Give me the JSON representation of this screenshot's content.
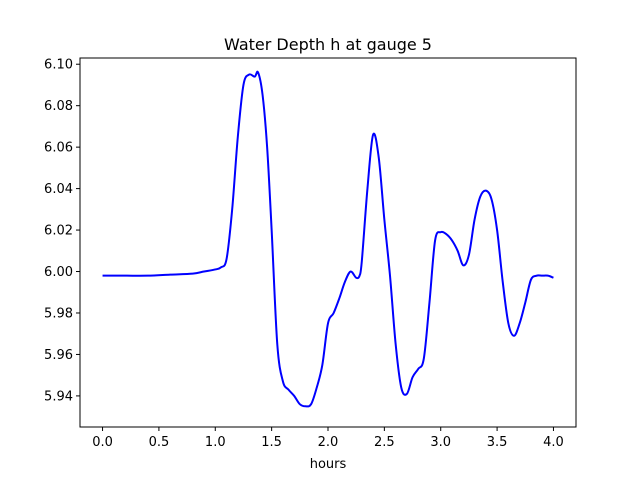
{
  "chart_data": {
    "type": "line",
    "title": "Water Depth h at gauge 5",
    "xlabel": "hours",
    "ylabel": "",
    "xlim": [
      -0.2,
      4.2
    ],
    "ylim": [
      5.925,
      6.103
    ],
    "xticks": [
      0.0,
      0.5,
      1.0,
      1.5,
      2.0,
      2.5,
      3.0,
      3.5,
      4.0
    ],
    "xtick_labels": [
      "0.0",
      "0.5",
      "1.0",
      "1.5",
      "2.0",
      "2.5",
      "3.0",
      "3.5",
      "4.0"
    ],
    "yticks": [
      5.94,
      5.96,
      5.98,
      6.0,
      6.02,
      6.04,
      6.06,
      6.08,
      6.1
    ],
    "ytick_labels": [
      "5.94",
      "5.96",
      "5.98",
      "6.00",
      "6.02",
      "6.04",
      "6.06",
      "6.08",
      "6.10"
    ],
    "grid": false,
    "series": [
      {
        "color": "#0000ff",
        "x": [
          0.0,
          0.2,
          0.4,
          0.6,
          0.8,
          0.9,
          1.0,
          1.05,
          1.1,
          1.15,
          1.2,
          1.25,
          1.3,
          1.35,
          1.38,
          1.42,
          1.46,
          1.5,
          1.55,
          1.6,
          1.65,
          1.7,
          1.75,
          1.8,
          1.85,
          1.9,
          1.95,
          2.0,
          2.05,
          2.1,
          2.15,
          2.2,
          2.25,
          2.28,
          2.3,
          2.35,
          2.4,
          2.45,
          2.5,
          2.55,
          2.6,
          2.65,
          2.7,
          2.75,
          2.8,
          2.85,
          2.9,
          2.95,
          3.0,
          3.05,
          3.1,
          3.15,
          3.2,
          3.25,
          3.3,
          3.35,
          3.4,
          3.45,
          3.5,
          3.55,
          3.6,
          3.65,
          3.7,
          3.75,
          3.8,
          3.85,
          3.9,
          3.95,
          4.0
        ],
        "y": [
          5.998,
          5.998,
          5.998,
          5.9985,
          5.999,
          6.0,
          6.001,
          6.002,
          6.006,
          6.03,
          6.065,
          6.09,
          6.095,
          6.094,
          6.096,
          6.085,
          6.06,
          6.02,
          5.965,
          5.947,
          5.943,
          5.94,
          5.936,
          5.935,
          5.936,
          5.944,
          5.955,
          5.975,
          5.98,
          5.987,
          5.995,
          6.0,
          5.997,
          5.998,
          6.005,
          6.04,
          6.066,
          6.055,
          6.025,
          5.998,
          5.965,
          5.944,
          5.941,
          5.949,
          5.953,
          5.958,
          5.985,
          6.015,
          6.019,
          6.018,
          6.015,
          6.01,
          6.003,
          6.008,
          6.025,
          6.036,
          6.039,
          6.035,
          6.02,
          5.995,
          5.975,
          5.969,
          5.975,
          5.985,
          5.996,
          5.998,
          5.998,
          5.998,
          5.997
        ]
      }
    ]
  }
}
